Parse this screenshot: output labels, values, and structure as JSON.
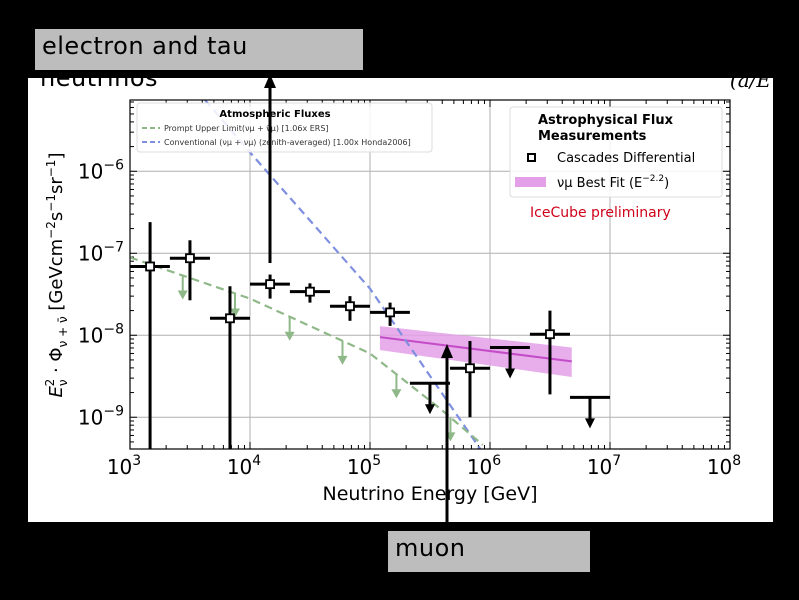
{
  "annotations": {
    "electron_tau_label": "electron and tau",
    "electron_tau_label_cont": "neutrinos",
    "muon_label": "muon",
    "corner_fragment": "(a/E"
  },
  "chart_data": {
    "type": "scatter",
    "xlabel": "Neutrino Energy [GeV]",
    "ylabel": "Eν² · Φν+ν̄ [GeVcm⁻²s⁻¹sr⁻¹]",
    "ylabel_parts": {
      "e": "E",
      "e_sub": "ν",
      "e_sup": "2",
      "dot": " · Φ",
      "phi_sub": "ν + ν̄",
      "unit": " [GeVcm",
      "u1": "−2",
      "u2": "s",
      "u3": "−1",
      "u4": "sr",
      "u5": "−1",
      "u6": "]"
    },
    "xscale": "log",
    "yscale": "log",
    "xlim": [
      1000,
      100000000
    ],
    "ylim": [
      4.1e-10,
      7.4e-06
    ],
    "grid": true,
    "xticks": [
      {
        "base": "10",
        "exp": "3"
      },
      {
        "base": "10",
        "exp": "4"
      },
      {
        "base": "10",
        "exp": "5"
      },
      {
        "base": "10",
        "exp": "6"
      },
      {
        "base": "10",
        "exp": "7"
      },
      {
        "base": "10",
        "exp": "8"
      }
    ],
    "yticks": [
      {
        "base": "10",
        "exp": "−6"
      },
      {
        "base": "10",
        "exp": "−7"
      },
      {
        "base": "10",
        "exp": "−8"
      },
      {
        "base": "10",
        "exp": "−9"
      }
    ],
    "annotation_text": "IceCube preliminary",
    "annotation_color": "#d0021b",
    "legends": [
      {
        "title": "Atmospheric Fluxes",
        "placement": "top-left",
        "entries": [
          {
            "label": "Prompt Upper Limit(νμ + ν̄μ) [1.06x ERS]",
            "color": "#8fb888",
            "style": "dashed"
          },
          {
            "label": "Conventional (νμ + νμ) (zenith-averaged) [1.00x Honda2006]",
            "color": "#7f8fe0",
            "style": "dashed"
          }
        ]
      },
      {
        "title_line1": "Astrophysical Flux",
        "title_line2": "Measurements",
        "placement": "top-right",
        "entries": [
          {
            "label": "Cascades Differential",
            "marker": "open-square",
            "color": "#000000"
          },
          {
            "label_main": "νμ Best Fit (E",
            "label_sup": "−2.2",
            "label_end": ")",
            "color": "#e3a0e8",
            "style": "band"
          }
        ]
      }
    ],
    "series": [
      {
        "name": "Cascades Differential",
        "type": "errorbar",
        "color": "#000000",
        "points": [
          {
            "x": 1470,
            "y": 6.9e-08,
            "x_lo": 1000,
            "x_hi": 2150,
            "y_lo": 1e-10,
            "y_hi": 2.4e-07
          },
          {
            "x": 3160,
            "y": 8.7e-08,
            "x_lo": 2150,
            "x_hi": 4640,
            "y_lo": 2.67e-08,
            "y_hi": 1.44e-07
          },
          {
            "x": 6810,
            "y": 1.61e-08,
            "x_lo": 4640,
            "x_hi": 10000,
            "y_lo": 1e-10,
            "y_hi": 3.96e-08
          },
          {
            "x": 14700,
            "y": 4.2e-08,
            "x_lo": 10000,
            "x_hi": 21500,
            "y_lo": 2.8e-08,
            "y_hi": 5.5e-08
          },
          {
            "x": 31600,
            "y": 3.4e-08,
            "x_lo": 21500,
            "x_hi": 46400,
            "y_lo": 2.5e-08,
            "y_hi": 4.3e-08
          },
          {
            "x": 68100,
            "y": 2.26e-08,
            "x_lo": 46400,
            "x_hi": 100000,
            "y_lo": 1.5e-08,
            "y_hi": 3e-08
          },
          {
            "x": 147000,
            "y": 1.9e-08,
            "x_lo": 100000,
            "x_hi": 215000,
            "y_lo": 1.3e-08,
            "y_hi": 2.5e-08
          },
          {
            "x": 681000,
            "y": 3.96e-09,
            "x_lo": 464000,
            "x_hi": 1000000,
            "y_lo": 1e-09,
            "y_hi": 8.5e-09
          },
          {
            "x": 3160000,
            "y": 1.03e-08,
            "x_lo": 2150000,
            "x_hi": 4640000,
            "y_lo": 1.9e-09,
            "y_hi": 2e-08
          }
        ]
      },
      {
        "name": "Cascades Differential upper limits",
        "type": "upper-limit",
        "color": "#000000",
        "points": [
          {
            "x": 316000,
            "y": 2.6e-09,
            "x_lo": 215000,
            "x_hi": 464000
          },
          {
            "x": 1470000,
            "y": 7.1e-09,
            "x_lo": 1000000,
            "x_hi": 2150000
          },
          {
            "x": 6810000,
            "y": 1.75e-09,
            "x_lo": 4640000,
            "x_hi": 10000000
          }
        ]
      },
      {
        "name": "Conventional",
        "type": "line",
        "color": "#7f8fe0",
        "x": [
          4220,
          10000,
          100000,
          830000
        ],
        "y": [
          7.4e-06,
          1.7e-06,
          3.7e-08,
          4.1e-10
        ]
      },
      {
        "name": "Prompt Upper Limit",
        "type": "line",
        "color": "#8fb888",
        "x": [
          1000,
          10000,
          100000,
          380000,
          870000
        ],
        "y": [
          8.9e-08,
          2.8e-08,
          6e-09,
          1.29e-09,
          4.6e-10
        ],
        "arrow_energies": [
          2750,
          7500,
          21400,
          59000,
          166000,
          468000
        ]
      },
      {
        "name": "νμ Best Fit",
        "type": "band",
        "color": "#c44cc8",
        "band_color": "#e3a0e8",
        "x": [
          121000,
          4800000
        ],
        "y": [
          9.5e-09,
          4.8e-09
        ],
        "y_lo": [
          6.6e-09,
          3.1e-09
        ],
        "y_hi": [
          1.29e-08,
          7.1e-09
        ]
      }
    ]
  }
}
